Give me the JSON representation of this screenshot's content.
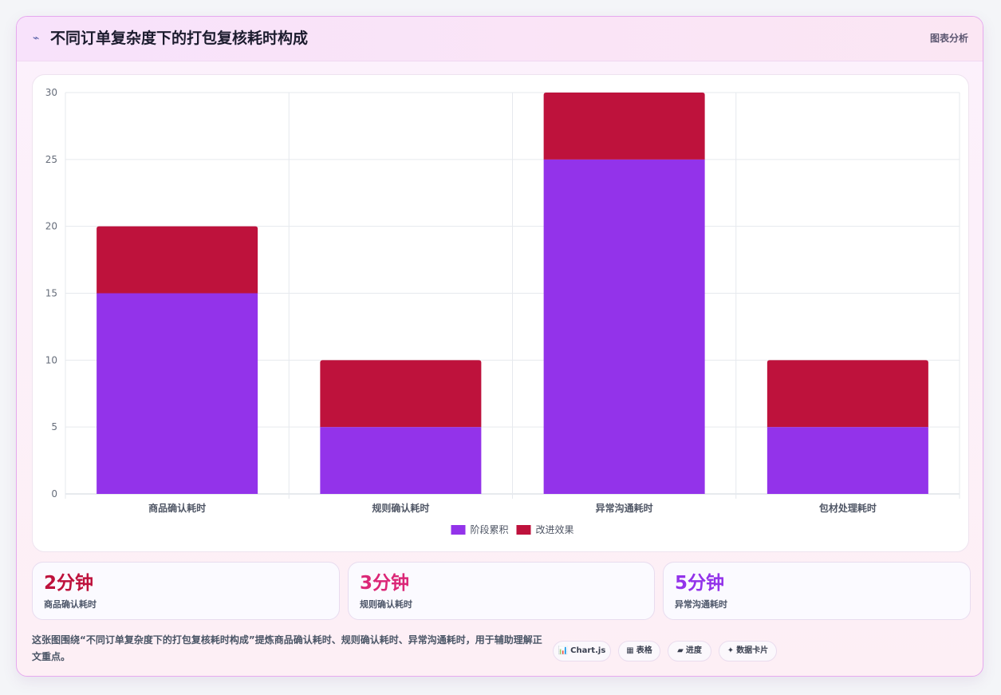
{
  "header": {
    "icon": "chart-line-icon",
    "icon_glyph": "⌁",
    "title": "不同订单复杂度下的打包复核耗时构成",
    "badge": "图表分析"
  },
  "chart_data": {
    "type": "bar",
    "stacked": true,
    "categories": [
      "商品确认耗时",
      "规则确认耗时",
      "异常沟通耗时",
      "包材处理耗时"
    ],
    "series": [
      {
        "name": "阶段累积",
        "values": [
          15,
          5,
          25,
          5
        ],
        "color": "#9333ea"
      },
      {
        "name": "改进效果",
        "values": [
          5,
          5,
          5,
          5
        ],
        "color": "#be123c"
      }
    ],
    "ylim": [
      0,
      30
    ],
    "yticks": [
      0,
      5,
      10,
      15,
      20,
      25,
      30
    ],
    "grid": true,
    "legend": "bottom"
  },
  "stats": [
    {
      "value": "2分钟",
      "label": "商品确认耗时",
      "color": "#be123c"
    },
    {
      "value": "3分钟",
      "label": "规则确认耗时",
      "color": "#db2777"
    },
    {
      "value": "5分钟",
      "label": "异常沟通耗时",
      "color": "#9333ea"
    }
  ],
  "footer": {
    "text": "这张图围绕“不同订单复杂度下的打包复核耗时构成”提炼商品确认耗时、规则确认耗时、异常沟通耗时，用于辅助理解正文重点。",
    "pills": [
      {
        "icon": "📊",
        "icon_name": "chart-icon",
        "label": "Chart.js"
      },
      {
        "icon": "▦",
        "icon_name": "table-icon",
        "label": "表格"
      },
      {
        "icon": "▰",
        "icon_name": "progress-icon",
        "label": "进度"
      },
      {
        "icon": "✦",
        "icon_name": "sparkle-icon",
        "label": "数据卡片"
      }
    ]
  }
}
